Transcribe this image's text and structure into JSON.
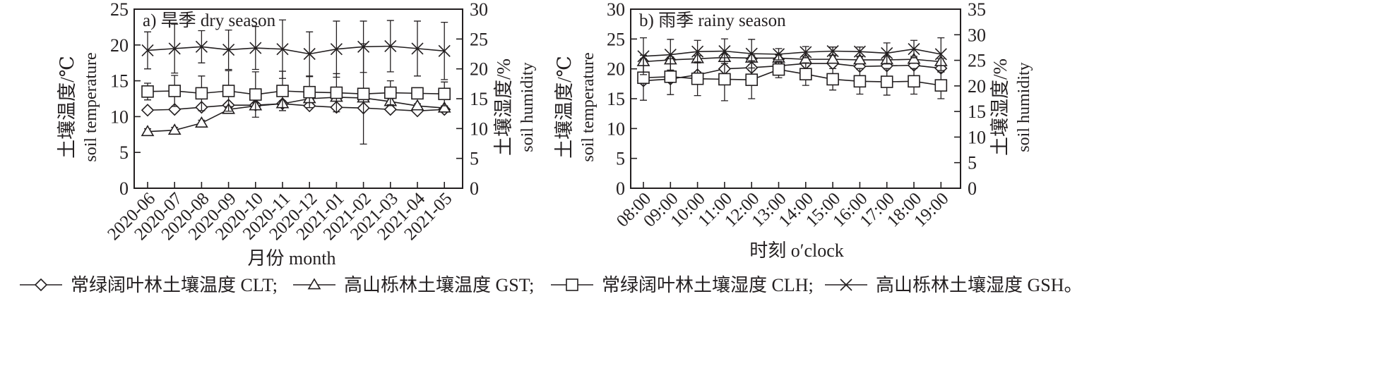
{
  "chart_data": [
    {
      "type": "line",
      "panel_label": "a) 旱季 dry season",
      "xlabel": "月份  month",
      "ylabel_left_cn": "土壤温度/℃",
      "ylabel_left_en": "soil temperature",
      "ylabel_right_cn": "土壤湿度/%",
      "ylabel_right_en": "soil humidity",
      "ylim_left": [
        0,
        25
      ],
      "ylim_right": [
        0,
        30
      ],
      "yticks_left": [
        "0",
        "5",
        "10",
        "15",
        "20",
        "25"
      ],
      "yticks_right": [
        "0",
        "5",
        "10",
        "15",
        "20",
        "25",
        "30"
      ],
      "categories": [
        "2020-06",
        "2020-07",
        "2020-08",
        "2020-09",
        "2020-10",
        "2020-11",
        "2020-12",
        "2021-01",
        "2021-02",
        "2021-03",
        "2021-04",
        "2021-05"
      ],
      "series": [
        {
          "key": "CLT",
          "axis": "left",
          "marker": "diamond",
          "values": [
            10.9,
            11.0,
            11.3,
            11.6,
            11.6,
            11.8,
            11.5,
            11.3,
            11.2,
            11.0,
            10.8,
            11.0
          ],
          "errors": [
            0.3,
            0.3,
            0.3,
            0.3,
            0.3,
            0.3,
            0.3,
            0.3,
            0.3,
            0.3,
            0.3,
            0.3
          ]
        },
        {
          "key": "GST",
          "axis": "left",
          "marker": "triangle",
          "values": [
            7.9,
            8.1,
            9.1,
            11.0,
            11.5,
            11.8,
            12.5,
            12.7,
            12.6,
            12.1,
            11.5,
            11.2
          ],
          "errors": [
            0.4,
            0.4,
            0.4,
            0.4,
            0.4,
            0.4,
            0.4,
            0.4,
            0.4,
            0.4,
            0.3,
            0.3
          ]
        },
        {
          "key": "CLH",
          "axis": "right",
          "marker": "square",
          "values": [
            16.2,
            16.3,
            15.9,
            16.3,
            15.7,
            16.3,
            16.1,
            16.0,
            15.8,
            16.0,
            15.9,
            15.8
          ],
          "errors": [
            1.4,
            2.6,
            2.9,
            3.4,
            3.8,
            3.3,
            2.6,
            3.2,
            8.4,
            2.0,
            0.6,
            2.0
          ]
        },
        {
          "key": "GSH",
          "axis": "right",
          "marker": "x",
          "values": [
            23.1,
            23.4,
            23.7,
            23.2,
            23.5,
            23.3,
            22.5,
            23.3,
            23.7,
            23.8,
            23.4,
            23.0
          ],
          "errors": [
            3.1,
            4.1,
            2.7,
            3.3,
            3.6,
            4.9,
            3.7,
            4.7,
            4.3,
            4.3,
            4.6,
            4.8
          ]
        }
      ]
    },
    {
      "type": "line",
      "panel_label": "b) 雨季 rainy season",
      "xlabel": "时刻 o′clock",
      "ylabel_left_cn": "土壤温度/℃",
      "ylabel_left_en": "soil temperature",
      "ylabel_right_cn": "土壤湿度/%",
      "ylabel_right_en": "soil humidity",
      "ylim_left": [
        0,
        30
      ],
      "ylim_right": [
        0,
        35
      ],
      "yticks_left": [
        "0",
        "5",
        "10",
        "15",
        "20",
        "25",
        "30"
      ],
      "yticks_right": [
        "0",
        "5",
        "10",
        "15",
        "20",
        "25",
        "30",
        "35"
      ],
      "categories": [
        "08:00",
        "09:00",
        "10:00",
        "11:00",
        "12:00",
        "13:00",
        "14:00",
        "15:00",
        "16:00",
        "17:00",
        "18:00",
        "19:00"
      ],
      "series": [
        {
          "key": "CLT",
          "axis": "left",
          "marker": "diamond",
          "values": [
            18.0,
            18.3,
            19.0,
            20.0,
            20.2,
            20.5,
            20.9,
            20.9,
            20.4,
            20.5,
            20.6,
            20.1
          ],
          "errors": [
            0.5,
            0.5,
            0.5,
            0.5,
            0.5,
            0.5,
            0.5,
            0.5,
            0.5,
            0.5,
            0.5,
            0.5
          ]
        },
        {
          "key": "GST",
          "axis": "left",
          "marker": "triangle",
          "values": [
            21.2,
            21.5,
            21.7,
            21.9,
            21.8,
            21.8,
            21.6,
            21.6,
            21.5,
            21.5,
            21.6,
            21.2
          ],
          "errors": [
            0.5,
            0.5,
            0.5,
            0.5,
            0.5,
            0.5,
            0.5,
            0.5,
            0.5,
            0.5,
            0.5,
            0.5
          ]
        },
        {
          "key": "CLH",
          "axis": "right",
          "marker": "square",
          "values": [
            21.6,
            21.8,
            21.4,
            21.3,
            21.2,
            23.2,
            22.3,
            21.3,
            20.9,
            20.8,
            20.9,
            20.1
          ],
          "errors": [
            4.4,
            3.5,
            3.3,
            4.2,
            3.7,
            1.6,
            2.2,
            2.1,
            2.5,
            2.6,
            2.5,
            2.6
          ]
        },
        {
          "key": "GSH",
          "axis": "right",
          "marker": "x",
          "values": [
            25.8,
            26.1,
            26.7,
            26.8,
            26.3,
            26.2,
            26.6,
            26.8,
            26.7,
            26.4,
            27.2,
            26.2
          ],
          "errors": [
            3.6,
            3.0,
            2.2,
            2.4,
            2.8,
            1.1,
            1.1,
            0.8,
            0.9,
            2.0,
            1.7,
            3.2
          ]
        }
      ]
    }
  ],
  "legend": [
    {
      "marker": "diamond",
      "label": "常绿阔叶林土壤温度 CLT;"
    },
    {
      "marker": "triangle",
      "label": "高山栎林土壤温度 GST;"
    },
    {
      "marker": "square",
      "label": "常绿阔叶林土壤湿度 CLH;"
    },
    {
      "marker": "x",
      "label": "高山栎林土壤湿度 GSH。"
    }
  ]
}
